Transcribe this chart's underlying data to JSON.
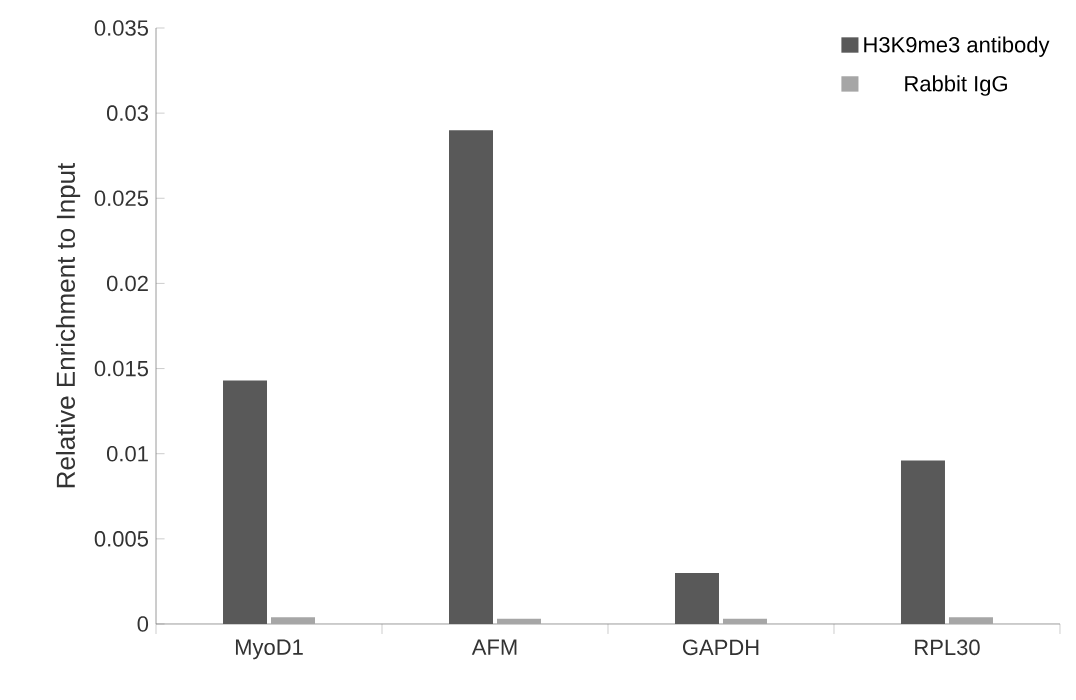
{
  "chart_data": {
    "type": "bar",
    "ylabel": "Relative Enrichment to Input",
    "categories": [
      "MyoD1",
      "AFM",
      "GAPDH",
      "RPL30"
    ],
    "series": [
      {
        "name": "H3K9me3 antibody",
        "color": "#595959",
        "values": [
          0.0143,
          0.029,
          0.003,
          0.0096
        ]
      },
      {
        "name": "Rabbit IgG",
        "color": "#a6a6a6",
        "values": [
          0.0004,
          0.0003,
          0.0003,
          0.0004
        ]
      }
    ],
    "ylim": [
      0,
      0.035
    ],
    "yticks": [
      0,
      0.005,
      0.01,
      0.015,
      0.02,
      0.025,
      0.03,
      0.035
    ],
    "grid": false,
    "legend": "top right"
  }
}
